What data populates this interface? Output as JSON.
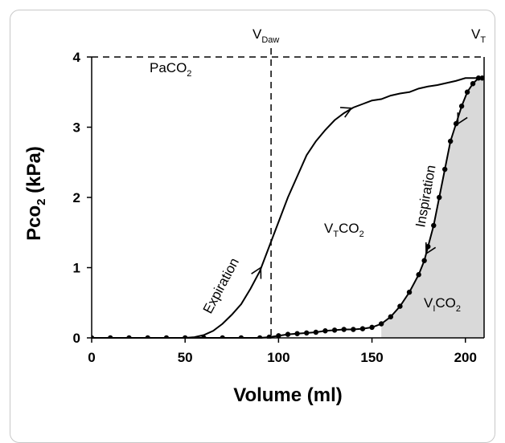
{
  "chart_data": {
    "type": "line",
    "xlim": [
      0,
      210
    ],
    "ylim": [
      0,
      4
    ],
    "x_ticks": [
      "0",
      "50",
      "100",
      "150",
      "200"
    ],
    "y_ticks": [
      "0",
      "1",
      "2",
      "3",
      "4"
    ],
    "xlabel": "Volume (ml)",
    "ylabel": {
      "pre": "Pco",
      "sub": "2",
      "post": " (kPa)"
    },
    "grid": false,
    "series": [
      {
        "name": "Expiration",
        "style": "solid",
        "points": [
          [
            0,
            0
          ],
          [
            50,
            0
          ],
          [
            55,
            0.01
          ],
          [
            60,
            0.04
          ],
          [
            65,
            0.1
          ],
          [
            70,
            0.2
          ],
          [
            75,
            0.33
          ],
          [
            80,
            0.48
          ],
          [
            85,
            0.7
          ],
          [
            90,
            0.95
          ],
          [
            95,
            1.3
          ],
          [
            100,
            1.65
          ],
          [
            105,
            2.0
          ],
          [
            110,
            2.3
          ],
          [
            115,
            2.6
          ],
          [
            120,
            2.8
          ],
          [
            125,
            2.96
          ],
          [
            130,
            3.1
          ],
          [
            135,
            3.2
          ],
          [
            140,
            3.28
          ],
          [
            145,
            3.33
          ],
          [
            150,
            3.38
          ],
          [
            155,
            3.4
          ],
          [
            160,
            3.45
          ],
          [
            165,
            3.48
          ],
          [
            170,
            3.5
          ],
          [
            175,
            3.55
          ],
          [
            180,
            3.58
          ],
          [
            185,
            3.6
          ],
          [
            190,
            3.63
          ],
          [
            195,
            3.66
          ],
          [
            200,
            3.7
          ],
          [
            205,
            3.7
          ],
          [
            210,
            3.7
          ]
        ]
      },
      {
        "name": "Inspiration",
        "style": "dotted-line",
        "points": [
          [
            0,
            0
          ],
          [
            10,
            0
          ],
          [
            20,
            0
          ],
          [
            30,
            0
          ],
          [
            40,
            0
          ],
          [
            50,
            0
          ],
          [
            60,
            0
          ],
          [
            70,
            0
          ],
          [
            80,
            0
          ],
          [
            90,
            0
          ],
          [
            95,
            0.01
          ],
          [
            100,
            0.03
          ],
          [
            105,
            0.05
          ],
          [
            110,
            0.06
          ],
          [
            115,
            0.07
          ],
          [
            120,
            0.08
          ],
          [
            125,
            0.1
          ],
          [
            130,
            0.11
          ],
          [
            135,
            0.12
          ],
          [
            140,
            0.12
          ],
          [
            145,
            0.13
          ],
          [
            150,
            0.15
          ],
          [
            155,
            0.2
          ],
          [
            160,
            0.3
          ],
          [
            165,
            0.45
          ],
          [
            170,
            0.65
          ],
          [
            175,
            0.9
          ],
          [
            178,
            1.1
          ],
          [
            180,
            1.3
          ],
          [
            183,
            1.6
          ],
          [
            186,
            2.0
          ],
          [
            189,
            2.4
          ],
          [
            192,
            2.8
          ],
          [
            195,
            3.05
          ],
          [
            198,
            3.3
          ],
          [
            201,
            3.5
          ],
          [
            204,
            3.62
          ],
          [
            207,
            3.7
          ],
          [
            209,
            3.7
          ]
        ]
      }
    ],
    "reference_lines": [
      {
        "orientation": "horizontal",
        "value": 4,
        "style": "dashed"
      },
      {
        "orientation": "vertical",
        "value": 96,
        "style": "dashed"
      }
    ],
    "shaded_region": {
      "series": "Inspiration",
      "from_x": 155,
      "to_x": 210,
      "color": "#d9d9d9"
    },
    "annotations": {
      "vdaw": {
        "main": "V",
        "sub": "Daw"
      },
      "vt": {
        "main": "V",
        "sub": "T"
      },
      "paco2": {
        "main": "PaCO",
        "sub": "2"
      },
      "vtco2": {
        "main": "V",
        "sub1": "T",
        "mid": "CO",
        "sub2": "2"
      },
      "vico2": {
        "main": "V",
        "sub1": "I",
        "mid": "CO",
        "sub2": "2"
      },
      "expiration": "Expiration",
      "inspiration": "Inspiration"
    }
  }
}
